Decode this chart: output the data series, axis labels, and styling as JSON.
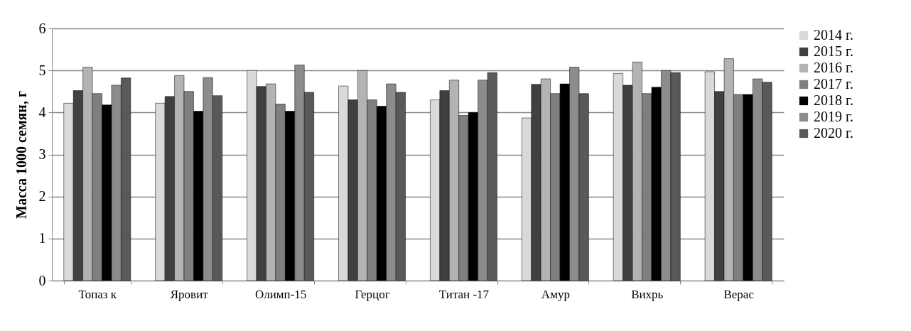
{
  "chart_data": {
    "type": "bar",
    "ylabel": "Масса 1000 семян, г",
    "categories": [
      "Топаз к",
      "Яровит",
      "Олимп-15",
      "Герцог",
      "Титан -17",
      "Амур",
      "Вихрь",
      "Верас"
    ],
    "series": [
      {
        "name": "2014 г.",
        "color": "#d9d9d9",
        "values": [
          4.22,
          4.22,
          5.0,
          4.63,
          4.3,
          3.87,
          4.93,
          4.97
        ]
      },
      {
        "name": "2015 г.",
        "color": "#404040",
        "values": [
          4.52,
          4.38,
          4.62,
          4.3,
          4.52,
          4.67,
          4.65,
          4.5
        ]
      },
      {
        "name": "2016 г.",
        "color": "#b3b3b3",
        "values": [
          5.08,
          4.88,
          4.68,
          5.0,
          4.77,
          4.8,
          5.2,
          5.28
        ]
      },
      {
        "name": "2017 г.",
        "color": "#7f7f7f",
        "values": [
          4.45,
          4.5,
          4.2,
          4.3,
          3.93,
          4.45,
          4.45,
          4.43
        ]
      },
      {
        "name": "2018 г.",
        "color": "#000000",
        "values": [
          4.18,
          4.03,
          4.03,
          4.15,
          4.0,
          4.68,
          4.6,
          4.43
        ]
      },
      {
        "name": "2019 г.",
        "color": "#8c8c8c",
        "values": [
          4.65,
          4.83,
          5.13,
          4.68,
          4.77,
          5.08,
          5.0,
          4.8
        ]
      },
      {
        "name": "2020  г.",
        "color": "#595959",
        "values": [
          4.82,
          4.4,
          4.48,
          4.48,
          4.95,
          4.45,
          4.95,
          4.72
        ]
      }
    ],
    "ylim": [
      0,
      6
    ],
    "yticks": [
      0,
      1,
      2,
      3,
      4,
      5,
      6
    ],
    "grid": "y",
    "legend": "right"
  }
}
